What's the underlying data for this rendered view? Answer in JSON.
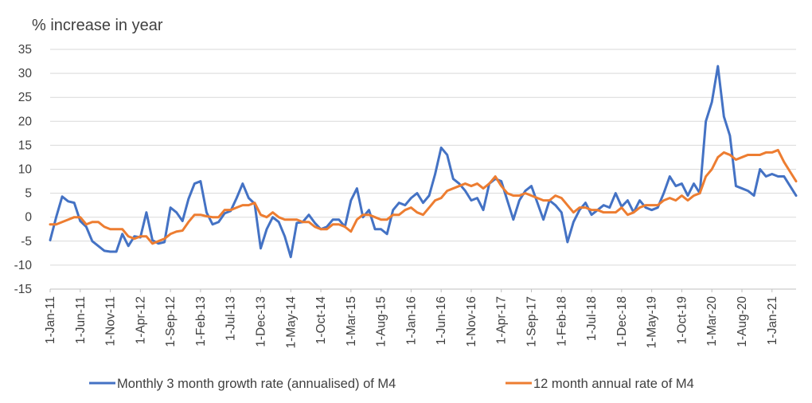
{
  "chart_data": {
    "type": "line",
    "ylabel": "% increase in year",
    "ylim": [
      -15,
      35
    ],
    "yticks": [
      35,
      30,
      25,
      20,
      15,
      10,
      5,
      0,
      -5,
      -10,
      -15
    ],
    "grid": "horizontal",
    "legend_position": "bottom",
    "x_tick_labels": [
      "1-Jan-11",
      "1-Jun-11",
      "1-Nov-11",
      "1-Apr-12",
      "1-Sep-12",
      "1-Feb-13",
      "1-Jul-13",
      "1-Dec-13",
      "1-May-14",
      "1-Oct-14",
      "1-Mar-15",
      "1-Aug-15",
      "1-Jan-16",
      "1-Jun-16",
      "1-Nov-16",
      "1-Apr-17",
      "1-Sep-17",
      "1-Feb-18",
      "1-Jul-18",
      "1-Dec-18",
      "1-May-19",
      "1-Oct-19",
      "1-Mar-20",
      "1-Aug-20",
      "1-Jan-21"
    ],
    "x_start": "2011-01",
    "x_end": "2021-05",
    "x_frequency": "monthly",
    "series": [
      {
        "name": "Monthly 3 month growth rate (annualised) of M4",
        "color": "#4472c4",
        "values": [
          -4.8,
          0,
          4.3,
          3.3,
          3,
          -0.8,
          -2,
          -5,
          -6,
          -7,
          -7.2,
          -7.2,
          -3.5,
          -6,
          -4,
          -4.2,
          1,
          -4.8,
          -5.5,
          -5.2,
          2,
          1,
          -0.8,
          3.8,
          7,
          7.5,
          1,
          -1.5,
          -1,
          0.8,
          1.3,
          4,
          7,
          4,
          2.8,
          -6.5,
          -2.5,
          0,
          -1,
          -4,
          -8.3,
          -1.2,
          -1,
          0.5,
          -1.2,
          -2.5,
          -2,
          -0.5,
          -0.5,
          -2,
          3.5,
          6,
          0,
          1.5,
          -2.5,
          -2.5,
          -3.5,
          1.5,
          3,
          2.5,
          4,
          5,
          3,
          4.5,
          9,
          14.5,
          13,
          8,
          7,
          5.5,
          3.5,
          4,
          1.5,
          7,
          8,
          7.5,
          3.5,
          -0.5,
          3.5,
          5.5,
          6.5,
          3,
          -0.5,
          3.5,
          2.5,
          1,
          -5.2,
          -1,
          1.5,
          3,
          0.5,
          1.5,
          2.5,
          2,
          5,
          2.2,
          3.5,
          1,
          3.5,
          2,
          1.5,
          2,
          5,
          8.5,
          6.5,
          7,
          4.5,
          7,
          5,
          20,
          24,
          31.5,
          21,
          17,
          6.5,
          6,
          5.5,
          4.5,
          10,
          8.5,
          9,
          8.5,
          8.5,
          6.5,
          4.5
        ]
      },
      {
        "name": "12 month annual rate of M4",
        "color": "#ed7d31",
        "values": [
          -1.5,
          -1.5,
          -1,
          -0.5,
          0,
          0,
          -1.5,
          -1,
          -1,
          -2,
          -2.5,
          -2.5,
          -2.5,
          -4,
          -4.5,
          -4,
          -4,
          -5.5,
          -5,
          -4.5,
          -3.5,
          -3,
          -2.8,
          -1,
          0.5,
          0.5,
          0.2,
          0,
          0,
          1.5,
          1.5,
          2,
          2.5,
          2.5,
          3,
          0.5,
          0,
          1,
          0,
          -0.5,
          -0.5,
          -0.5,
          -1,
          -1,
          -2,
          -2.5,
          -2.5,
          -1.5,
          -1.5,
          -2,
          -3,
          -0.5,
          0.5,
          0.5,
          0,
          -0.5,
          -0.5,
          0.5,
          0.5,
          1.5,
          2,
          1,
          0.5,
          2,
          3.5,
          4,
          5.5,
          6,
          6.5,
          7,
          6.5,
          7,
          6,
          7,
          8.5,
          6.5,
          5,
          4.5,
          4.5,
          5,
          4.5,
          4,
          3.5,
          3.5,
          4.5,
          4,
          2.5,
          1,
          2,
          2,
          1.5,
          1.5,
          1,
          1,
          1,
          2,
          0.5,
          1,
          2,
          2.5,
          2.5,
          2.5,
          3.5,
          4,
          3.5,
          4.5,
          3.5,
          4.5,
          5,
          8.5,
          10,
          12.5,
          13.5,
          13,
          12,
          12.5,
          13,
          13,
          13,
          13.5,
          13.5,
          14,
          11.5,
          9.5,
          7.5
        ]
      }
    ]
  }
}
